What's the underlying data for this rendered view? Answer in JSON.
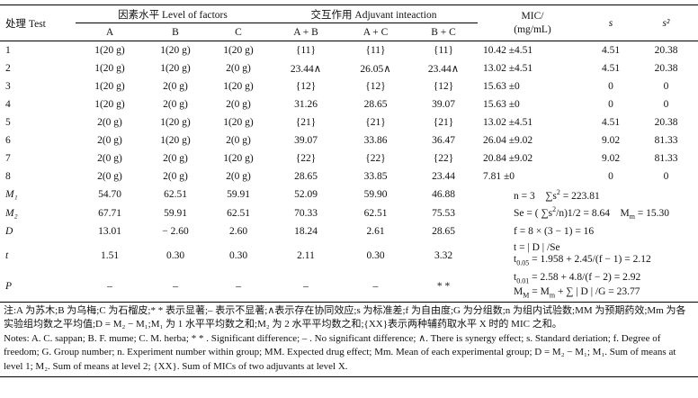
{
  "table": {
    "header": {
      "test": "处理 Test",
      "factors": "因素水平 Level of factors",
      "interaction": "交互作用 Adjuvant inteaction",
      "mic": [
        "MIC/",
        "(mg/mL)"
      ],
      "s": "s",
      "s2": "s²",
      "sub": [
        "A",
        "B",
        "C",
        "A + B",
        "A + C",
        "B + C"
      ]
    },
    "rows": [
      [
        "1",
        "1(20 g)",
        "1(20 g)",
        "1(20 g)",
        "{11}",
        "{11}",
        "{11}",
        "10.42 ±4.51",
        "4.51",
        "20.38"
      ],
      [
        "2",
        "1(20 g)",
        "1(20 g)",
        "2(0 g)",
        "23.44∧",
        "26.05∧",
        "23.44∧",
        "13.02 ±4.51",
        "4.51",
        "20.38"
      ],
      [
        "3",
        "1(20 g)",
        "2(0 g)",
        "1(20 g)",
        "{12}",
        "{12}",
        "{12}",
        "15.63 ±0",
        "0",
        "0"
      ],
      [
        "4",
        "1(20 g)",
        "2(0 g)",
        "2(0 g)",
        "31.26",
        "28.65",
        "39.07",
        "15.63 ±0",
        "0",
        "0"
      ],
      [
        "5",
        "2(0 g)",
        "1(20 g)",
        "1(20 g)",
        "{21}",
        "{21}",
        "{21}",
        "13.02 ±4.51",
        "4.51",
        "20.38"
      ],
      [
        "6",
        "2(0 g)",
        "1(20 g)",
        "2(0 g)",
        "39.07",
        "33.86",
        "36.47",
        "26.04 ±9.02",
        "9.02",
        "81.33"
      ],
      [
        "7",
        "2(0 g)",
        "2(0 g)",
        "1(20 g)",
        "{22}",
        "{22}",
        "{22}",
        "20.84 ±9.02",
        "9.02",
        "81.33"
      ],
      [
        "8",
        "2(0 g)",
        "2(0 g)",
        "2(0 g)",
        "28.65",
        "33.85",
        "23.44",
        "7.81 ±0",
        "0",
        "0"
      ]
    ],
    "summary": [
      {
        "label": "M₁",
        "cells": [
          "54.70",
          "62.51",
          "59.91",
          "52.09",
          "59.90",
          "46.88"
        ],
        "stats": [
          [
            "n = 3    ∑s",
            {
              "sup": "2"
            },
            " = 223.81"
          ]
        ]
      },
      {
        "label": "M₂",
        "cells": [
          "67.71",
          "59.91",
          "62.51",
          "70.33",
          "62.51",
          "75.53"
        ],
        "stats": [
          [
            "Se = ( ∑s",
            {
              "sup": "2"
            },
            "/n)1/2 = 8.64    M",
            {
              "sub": "m"
            },
            " = 15.30"
          ]
        ]
      },
      {
        "label": "D",
        "cells": [
          "13.01",
          "− 2.60",
          "2.60",
          "18.24",
          "2.61",
          "28.65"
        ],
        "stats": [
          [
            "f = 8 × (3 − 1) = 16"
          ]
        ]
      },
      {
        "label": "t",
        "cells": [
          "1.51",
          "0.30",
          "0.30",
          "2.11",
          "0.30",
          "3.32"
        ],
        "stats": [
          [
            "t = | D | /Se"
          ],
          [
            "t",
            {
              "sub": "0.05"
            },
            " = 1.958 + 2.45/(f − 1) = 2.12"
          ]
        ]
      },
      {
        "label": "P",
        "cells": [
          "–",
          "–",
          "–",
          "–",
          "–",
          "* *"
        ],
        "stats": [
          [
            "t",
            {
              "sub": "0.01"
            },
            " = 2.58 + 4.8/(f − 2) = 2.92"
          ],
          [
            "M",
            {
              "sub": "M"
            },
            " = M",
            {
              "sub": "m"
            },
            " + ∑ | D | /G = 23.77"
          ]
        ]
      }
    ]
  },
  "notes": {
    "zh": "注:A 为苏木;B 为乌梅;C 为石榴皮;* * 表示显著;– 表示不显著;∧表示存在协同效应;s 为标准差;f 为自由度;G 为分组数;n 为组内试验数;MM 为预期药效;Mm 为各实验组均数之平均值;D = M₂ − M₁;M₁ 为 1 水平平均数之和;M₂ 为 2 水平平均数之和;{XX}表示两种辅药取水平 X 时的 MIC 之和。",
    "en": "Notes: A. C. sappan; B. F. mume; C. M. herba; * * . Significant difference; – . No significant difference; ∧. There is synergy effect; s. Standard deriation; f. Degree of freedom; G. Group number; n. Experiment number within group; MM. Expected drug effect; Mm. Mean of each experimental group; D = M₂ − M₁; M₁. Sum of means at level 1; M₂. Sum of means at level 2; {XX}. Sum of MICs of two adjuvants at level X."
  }
}
